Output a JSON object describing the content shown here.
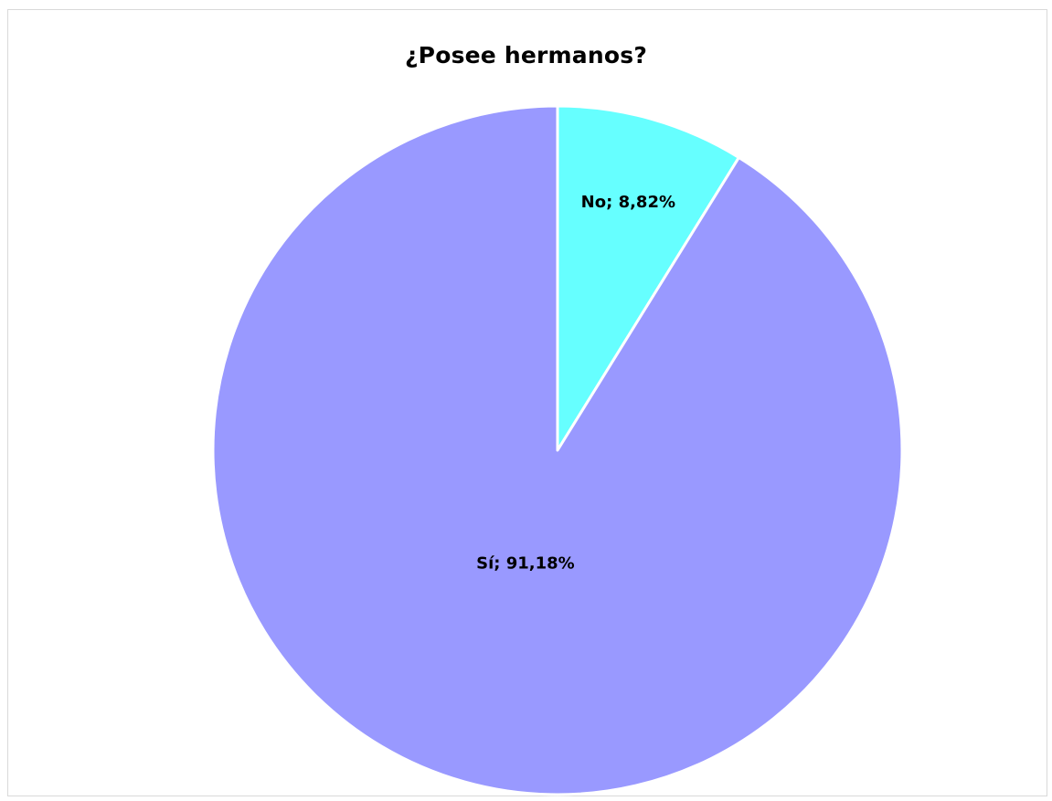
{
  "chart_data": {
    "type": "pie",
    "title": "¿Posee hermanos?",
    "series": [
      {
        "values": [
          {
            "label": "No",
            "value": 8.82,
            "display": "No; 8,82%",
            "color": "#66FFFF"
          },
          {
            "label": "Sí",
            "value": 91.18,
            "display": "Sí; 91,18%",
            "color": "#9999FF"
          }
        ]
      }
    ],
    "start_angle_deg": 0,
    "direction": "clockwise",
    "legend": "none",
    "data_labels": "inside"
  }
}
